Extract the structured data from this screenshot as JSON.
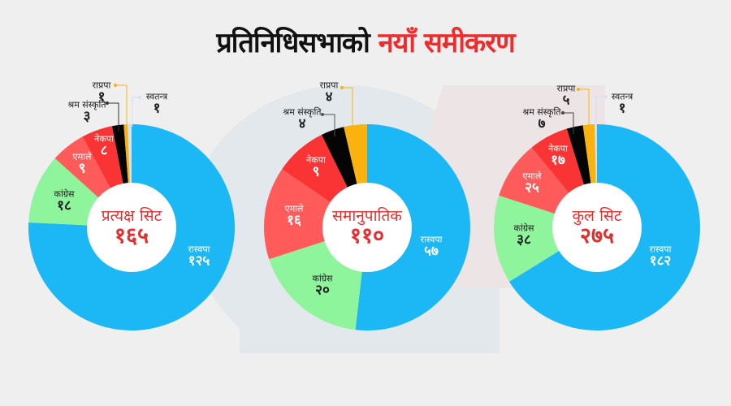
{
  "title": {
    "part1": "प्रतिनिधिसभाको",
    "part2": "नयाँ समीकरण"
  },
  "colors": {
    "rsp": "#1cb8f5",
    "congress": "#8ff59d",
    "uml": "#ff5b5b",
    "maoist": "#fa3434",
    "shram": "#050505",
    "rpp": "#fbb20e",
    "independent": "#cfe2f5",
    "center_text": "#e22f2f"
  },
  "chart_data": [
    {
      "type": "pie",
      "title": "प्रत्यक्ष सिट",
      "total": "१६५",
      "categories": [
        "रास्वपा",
        "कांग्रेस",
        "एमाले",
        "नेकपा",
        "श्रम संस्कृति",
        "राप्रपा",
        "स्वतन्त्र"
      ],
      "values": [
        125,
        18,
        9,
        8,
        3,
        1,
        1
      ],
      "value_labels": [
        "१२५",
        "१८",
        "९",
        "८",
        "३",
        "१",
        "१"
      ]
    },
    {
      "type": "pie",
      "title": "समानुपातिक",
      "total": "११०",
      "categories": [
        "रास्वपा",
        "कांग्रेस",
        "एमाले",
        "नेकपा",
        "श्रम संस्कृति",
        "राप्रपा"
      ],
      "values": [
        57,
        20,
        16,
        9,
        4,
        4
      ],
      "value_labels": [
        "५७",
        "२०",
        "१६",
        "९",
        "४",
        "४"
      ]
    },
    {
      "type": "pie",
      "title": "कुल सिट",
      "total": "२७५",
      "categories": [
        "रास्वपा",
        "कांग्रेस",
        "एमाले",
        "नेकपा",
        "श्रम संस्कृति",
        "राप्रपा",
        "स्वतन्त्र"
      ],
      "values": [
        182,
        38,
        25,
        17,
        7,
        5,
        1
      ],
      "value_labels": [
        "१८२",
        "३८",
        "२५",
        "१७",
        "७",
        "५",
        "१"
      ]
    }
  ],
  "charts": [
    {
      "center": {
        "title": "प्रत्यक्ष सिट",
        "value": "१६५"
      },
      "labels": {
        "rsp": {
          "name": "रास्वपा",
          "value": "१२५"
        },
        "congress": {
          "name": "कांग्रेस",
          "value": "१८"
        },
        "uml": {
          "name": "एमाले",
          "value": "९"
        },
        "maoist": {
          "name": "नेकपा",
          "value": "८"
        },
        "shram": {
          "name": "श्रम संस्कृति",
          "value": "३"
        },
        "rpp": {
          "name": "राप्रपा",
          "value": "१"
        },
        "independent": {
          "name": "स्वतन्त्र",
          "value": "१"
        }
      }
    },
    {
      "center": {
        "title": "समानुपातिक",
        "value": "११०"
      },
      "labels": {
        "rsp": {
          "name": "रास्वपा",
          "value": "५७"
        },
        "congress": {
          "name": "कांग्रेस",
          "value": "२०"
        },
        "uml": {
          "name": "एमाले",
          "value": "१६"
        },
        "maoist": {
          "name": "नेकपा",
          "value": "९"
        },
        "shram": {
          "name": "श्रम संस्कृति",
          "value": "४"
        },
        "rpp": {
          "name": "राप्रपा",
          "value": "४"
        }
      }
    },
    {
      "center": {
        "title": "कुल सिट",
        "value": "२७५"
      },
      "labels": {
        "rsp": {
          "name": "रास्वपा",
          "value": "१८२"
        },
        "congress": {
          "name": "कांग्रेस",
          "value": "३८"
        },
        "uml": {
          "name": "एमाले",
          "value": "२५"
        },
        "maoist": {
          "name": "नेकपा",
          "value": "१७"
        },
        "shram": {
          "name": "श्रम संस्कृति",
          "value": "७"
        },
        "rpp": {
          "name": "राप्रपा",
          "value": "५"
        },
        "independent": {
          "name": "स्वतन्त्र",
          "value": "१"
        }
      }
    }
  ]
}
